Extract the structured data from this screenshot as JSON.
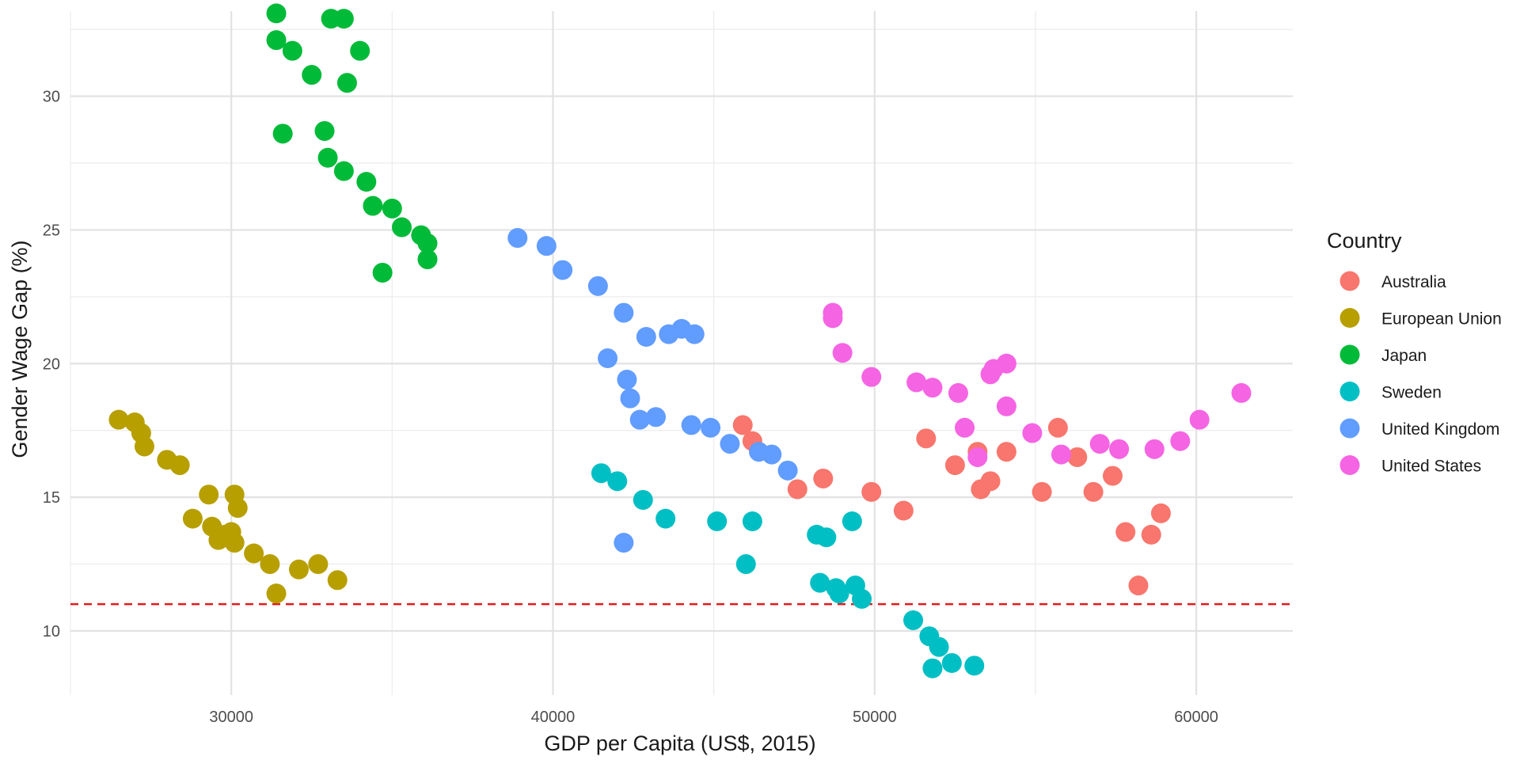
{
  "chart_data": {
    "type": "scatter",
    "title": "",
    "xlabel": "GDP per Capita (US$, 2015)",
    "ylabel": "Gender Wage Gap (%)",
    "xlim": [
      25000,
      63000
    ],
    "ylim": [
      7.6,
      33.6
    ],
    "x_ticks": [
      30000,
      40000,
      50000,
      60000
    ],
    "y_ticks": [
      10,
      15,
      20,
      25,
      30
    ],
    "grid": true,
    "legend_title": "Country",
    "legend_position": "right",
    "reference_line": {
      "orientation": "horizontal",
      "y": 11,
      "style": "dashed",
      "color": "#e41a1c"
    },
    "series": [
      {
        "name": "Australia",
        "color": "#F8766D",
        "points": [
          [
            45900,
            17.7
          ],
          [
            46200,
            17.1
          ],
          [
            47600,
            15.3
          ],
          [
            48400,
            15.7
          ],
          [
            49900,
            15.2
          ],
          [
            50900,
            14.5
          ],
          [
            51600,
            17.2
          ],
          [
            52500,
            16.2
          ],
          [
            53200,
            16.7
          ],
          [
            53300,
            15.3
          ],
          [
            53600,
            15.6
          ],
          [
            54100,
            16.7
          ],
          [
            55200,
            15.2
          ],
          [
            55700,
            17.6
          ],
          [
            56300,
            16.5
          ],
          [
            56800,
            15.2
          ],
          [
            57400,
            15.8
          ],
          [
            57800,
            13.7
          ],
          [
            58200,
            11.7
          ],
          [
            58600,
            13.6
          ],
          [
            58900,
            14.4
          ]
        ]
      },
      {
        "name": "European Union",
        "color": "#B79F00",
        "points": [
          [
            26500,
            17.9
          ],
          [
            27000,
            17.8
          ],
          [
            27200,
            17.4
          ],
          [
            27300,
            16.9
          ],
          [
            28000,
            16.4
          ],
          [
            28400,
            16.2
          ],
          [
            28800,
            14.2
          ],
          [
            29300,
            15.1
          ],
          [
            29400,
            13.9
          ],
          [
            29600,
            13.4
          ],
          [
            29800,
            13.6
          ],
          [
            30000,
            13.7
          ],
          [
            30100,
            13.3
          ],
          [
            30100,
            15.1
          ],
          [
            30200,
            14.6
          ],
          [
            30700,
            12.9
          ],
          [
            31200,
            12.5
          ],
          [
            31400,
            11.4
          ],
          [
            32100,
            12.3
          ],
          [
            32700,
            12.5
          ],
          [
            33300,
            11.9
          ]
        ]
      },
      {
        "name": "Japan",
        "color": "#00BA38",
        "points": [
          [
            31400,
            33.1
          ],
          [
            31400,
            32.1
          ],
          [
            31900,
            31.7
          ],
          [
            31600,
            28.6
          ],
          [
            32500,
            30.8
          ],
          [
            32900,
            28.7
          ],
          [
            33000,
            27.7
          ],
          [
            33100,
            32.9
          ],
          [
            33500,
            32.9
          ],
          [
            33500,
            27.2
          ],
          [
            33600,
            30.5
          ],
          [
            34000,
            31.7
          ],
          [
            34200,
            26.8
          ],
          [
            34400,
            25.9
          ],
          [
            34700,
            23.4
          ],
          [
            35000,
            25.8
          ],
          [
            35300,
            25.1
          ],
          [
            35900,
            24.8
          ],
          [
            36100,
            24.5
          ],
          [
            36100,
            23.9
          ]
        ]
      },
      {
        "name": "Sweden",
        "color": "#00BFC4",
        "points": [
          [
            41500,
            15.9
          ],
          [
            42000,
            15.6
          ],
          [
            42800,
            14.9
          ],
          [
            43500,
            14.2
          ],
          [
            45100,
            14.1
          ],
          [
            46000,
            12.5
          ],
          [
            46200,
            14.1
          ],
          [
            48200,
            13.6
          ],
          [
            48300,
            11.8
          ],
          [
            48500,
            13.5
          ],
          [
            48800,
            11.6
          ],
          [
            48900,
            11.4
          ],
          [
            49300,
            14.1
          ],
          [
            49400,
            11.7
          ],
          [
            49600,
            11.2
          ],
          [
            51200,
            10.4
          ],
          [
            51700,
            9.8
          ],
          [
            51800,
            8.6
          ],
          [
            52000,
            9.4
          ],
          [
            52400,
            8.8
          ],
          [
            53100,
            8.7
          ]
        ]
      },
      {
        "name": "United Kingdom",
        "color": "#619CFF",
        "points": [
          [
            38900,
            24.7
          ],
          [
            39800,
            24.4
          ],
          [
            40300,
            23.5
          ],
          [
            41400,
            22.9
          ],
          [
            41700,
            20.2
          ],
          [
            42200,
            21.9
          ],
          [
            42300,
            19.4
          ],
          [
            42400,
            18.7
          ],
          [
            42700,
            17.9
          ],
          [
            42900,
            21.0
          ],
          [
            43200,
            18.0
          ],
          [
            43600,
            21.1
          ],
          [
            44000,
            21.3
          ],
          [
            44300,
            17.7
          ],
          [
            44400,
            21.1
          ],
          [
            44900,
            17.6
          ],
          [
            45500,
            17.0
          ],
          [
            46400,
            16.7
          ],
          [
            46800,
            16.6
          ],
          [
            47300,
            16.0
          ],
          [
            42200,
            13.3
          ]
        ]
      },
      {
        "name": "United States",
        "color": "#F564E3",
        "points": [
          [
            48700,
            21.9
          ],
          [
            48700,
            21.7
          ],
          [
            49000,
            20.4
          ],
          [
            49900,
            19.5
          ],
          [
            51300,
            19.3
          ],
          [
            51800,
            19.1
          ],
          [
            52600,
            18.9
          ],
          [
            52800,
            17.6
          ],
          [
            53200,
            16.5
          ],
          [
            53600,
            19.6
          ],
          [
            53700,
            19.8
          ],
          [
            54100,
            20.0
          ],
          [
            54100,
            18.4
          ],
          [
            54900,
            17.4
          ],
          [
            55800,
            16.6
          ],
          [
            57000,
            17.0
          ],
          [
            57600,
            16.8
          ],
          [
            58700,
            16.8
          ],
          [
            59500,
            17.1
          ],
          [
            60100,
            17.9
          ],
          [
            61400,
            18.9
          ]
        ]
      }
    ]
  }
}
